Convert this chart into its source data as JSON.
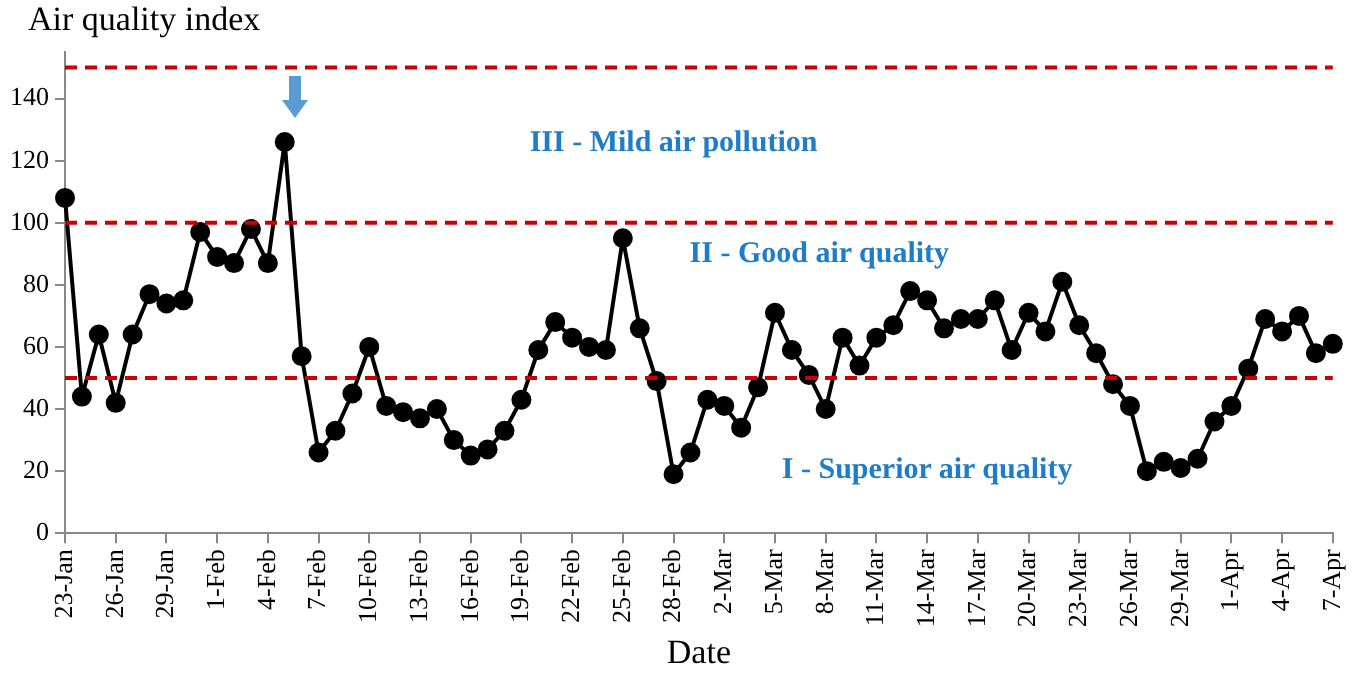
{
  "chart_data": {
    "type": "line",
    "ylabel": "Air quality index",
    "xlabel": "Date",
    "categories": [
      "23-Jan",
      null,
      null,
      "26-Jan",
      null,
      null,
      "29-Jan",
      null,
      null,
      "1-Feb",
      null,
      null,
      "4-Feb",
      null,
      null,
      "7-Feb",
      null,
      null,
      "10-Feb",
      null,
      null,
      "13-Feb",
      null,
      null,
      "16-Feb",
      null,
      null,
      "19-Feb",
      null,
      null,
      "22-Feb",
      null,
      null,
      "25-Feb",
      null,
      null,
      "28-Feb",
      null,
      null,
      "2-Mar",
      null,
      null,
      "5-Mar",
      null,
      null,
      "8-Mar",
      null,
      null,
      "11-Mar",
      null,
      null,
      "14-Mar",
      null,
      null,
      "17-Mar",
      null,
      null,
      "20-Mar",
      null,
      null,
      "23-Mar",
      null,
      null,
      "26-Mar",
      null,
      null,
      "29-Mar",
      null,
      null,
      "1-Apr",
      null,
      null,
      "4-Apr",
      null,
      null,
      "7-Apr"
    ],
    "series": [
      {
        "color": "#000000",
        "values": [
          108,
          44,
          64,
          42,
          64,
          77,
          74,
          75,
          97,
          89,
          87,
          98,
          87,
          126,
          57,
          26,
          33,
          45,
          60,
          41,
          39,
          37,
          40,
          30,
          25,
          27,
          33,
          43,
          59,
          68,
          63,
          60,
          59,
          95,
          66,
          49,
          19,
          26,
          43,
          41,
          34,
          47,
          71,
          59,
          51,
          40,
          63,
          54,
          63,
          67,
          78,
          75,
          66,
          69,
          69,
          75,
          59,
          71,
          65,
          81,
          67,
          58,
          48,
          41,
          20,
          23,
          21,
          24,
          36,
          41,
          53,
          69,
          65,
          70,
          58,
          61
        ]
      }
    ],
    "ylim": [
      0,
      155
    ],
    "yticks": [
      0,
      20,
      40,
      60,
      80,
      100,
      120,
      140
    ],
    "ref_lines": [
      {
        "axis": "y",
        "value": 50,
        "color": "#cc0000",
        "line_style": "dashed"
      },
      {
        "axis": "y",
        "value": 100,
        "color": "#cc0000",
        "line_style": "dashed"
      },
      {
        "axis": "y",
        "value": 150,
        "color": "#cc0000",
        "line_style": "dashed"
      }
    ],
    "annotations": [
      "III - Mild air pollution",
      "II - Good air quality",
      "I - Superior air quality"
    ],
    "grid": false,
    "legend": false,
    "marker": "circle",
    "line_style": "solid"
  }
}
